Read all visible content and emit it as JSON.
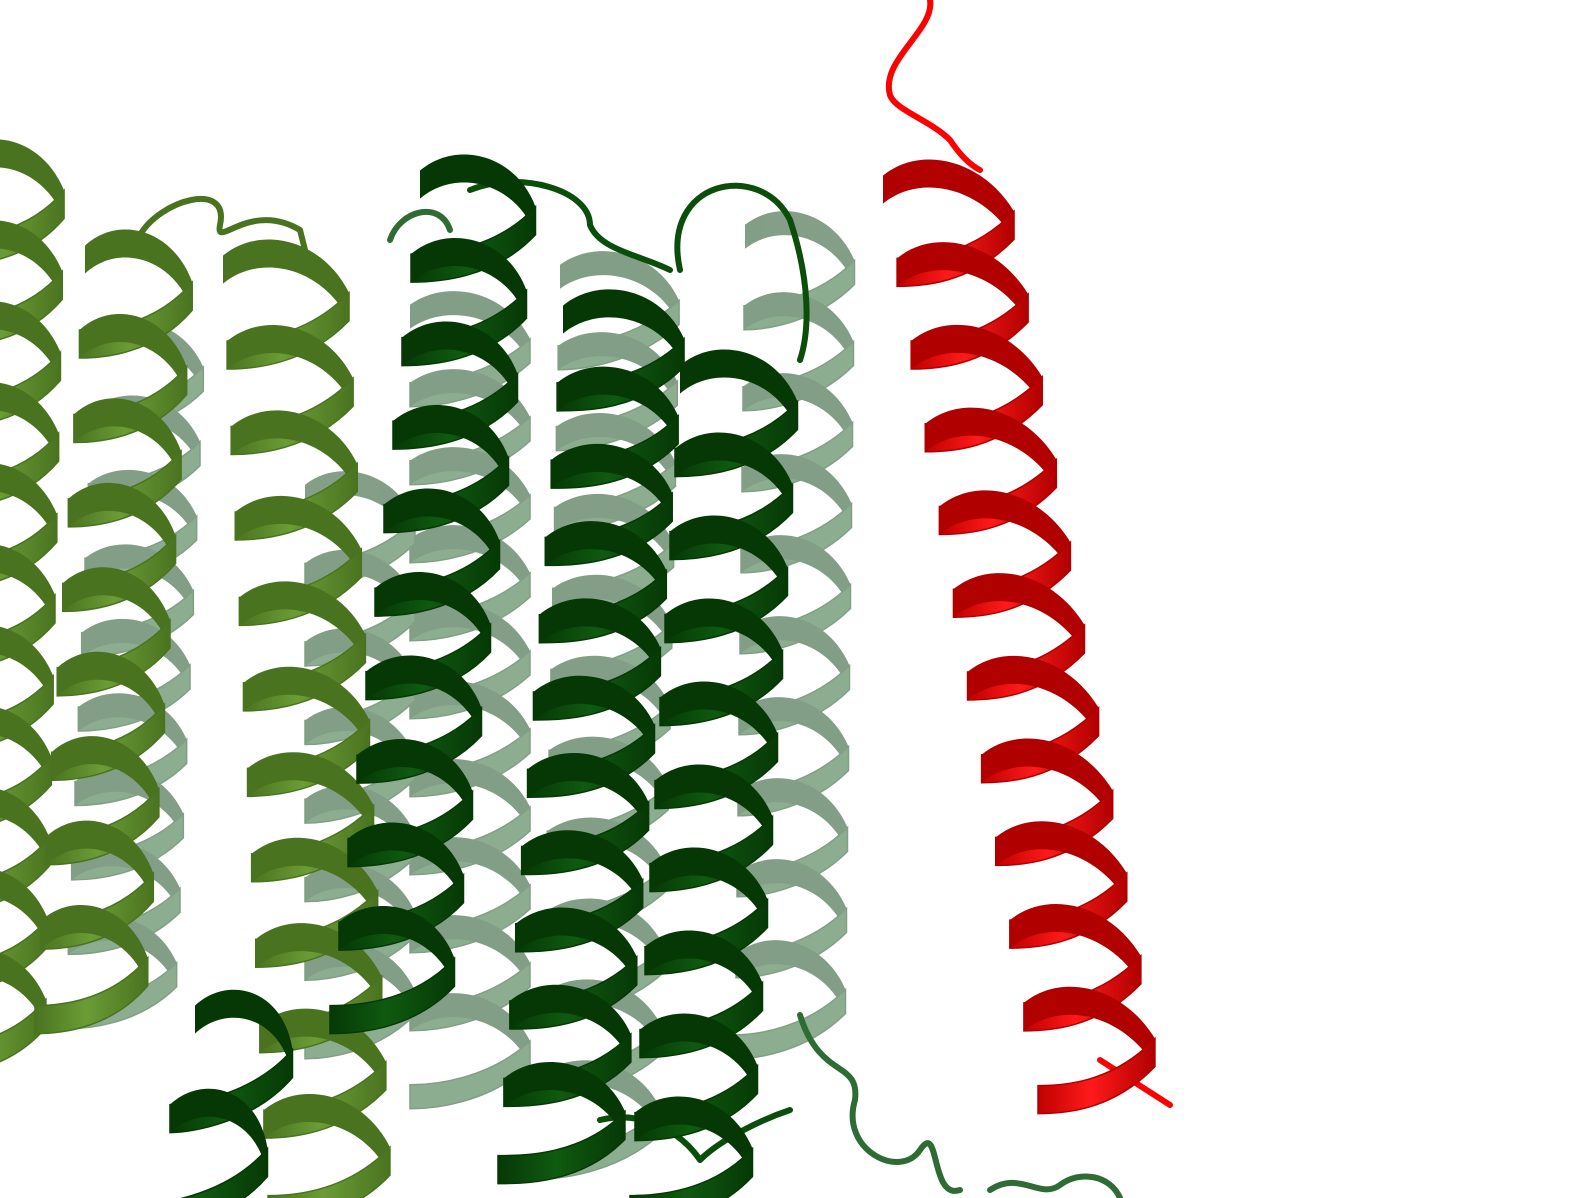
{
  "scene": {
    "description_kind": "protein-ribbon-render",
    "background": "#ffffff",
    "colors": {
      "light_green": "#5f8f2b",
      "light_green_shade": "#4a7320",
      "dark_green": "#0b4d0b",
      "dark_green_shade": "#063806",
      "back_green": "#2f6b35",
      "highlight_red": "#ff0000",
      "highlight_red_shade": "#b00000"
    },
    "helices": [
      {
        "id": "helix-light-1",
        "color_role": "light_green",
        "layer": "front"
      },
      {
        "id": "helix-light-2",
        "color_role": "light_green",
        "layer": "front"
      },
      {
        "id": "helix-light-3",
        "color_role": "light_green",
        "layer": "front"
      },
      {
        "id": "helix-dark-1",
        "color_role": "dark_green",
        "layer": "front"
      },
      {
        "id": "helix-dark-2",
        "color_role": "dark_green",
        "layer": "front"
      },
      {
        "id": "helix-dark-3",
        "color_role": "dark_green",
        "layer": "front"
      },
      {
        "id": "helix-dark-4",
        "color_role": "dark_green",
        "layer": "front"
      },
      {
        "id": "helix-red",
        "color_role": "highlight_red",
        "layer": "front"
      }
    ]
  }
}
